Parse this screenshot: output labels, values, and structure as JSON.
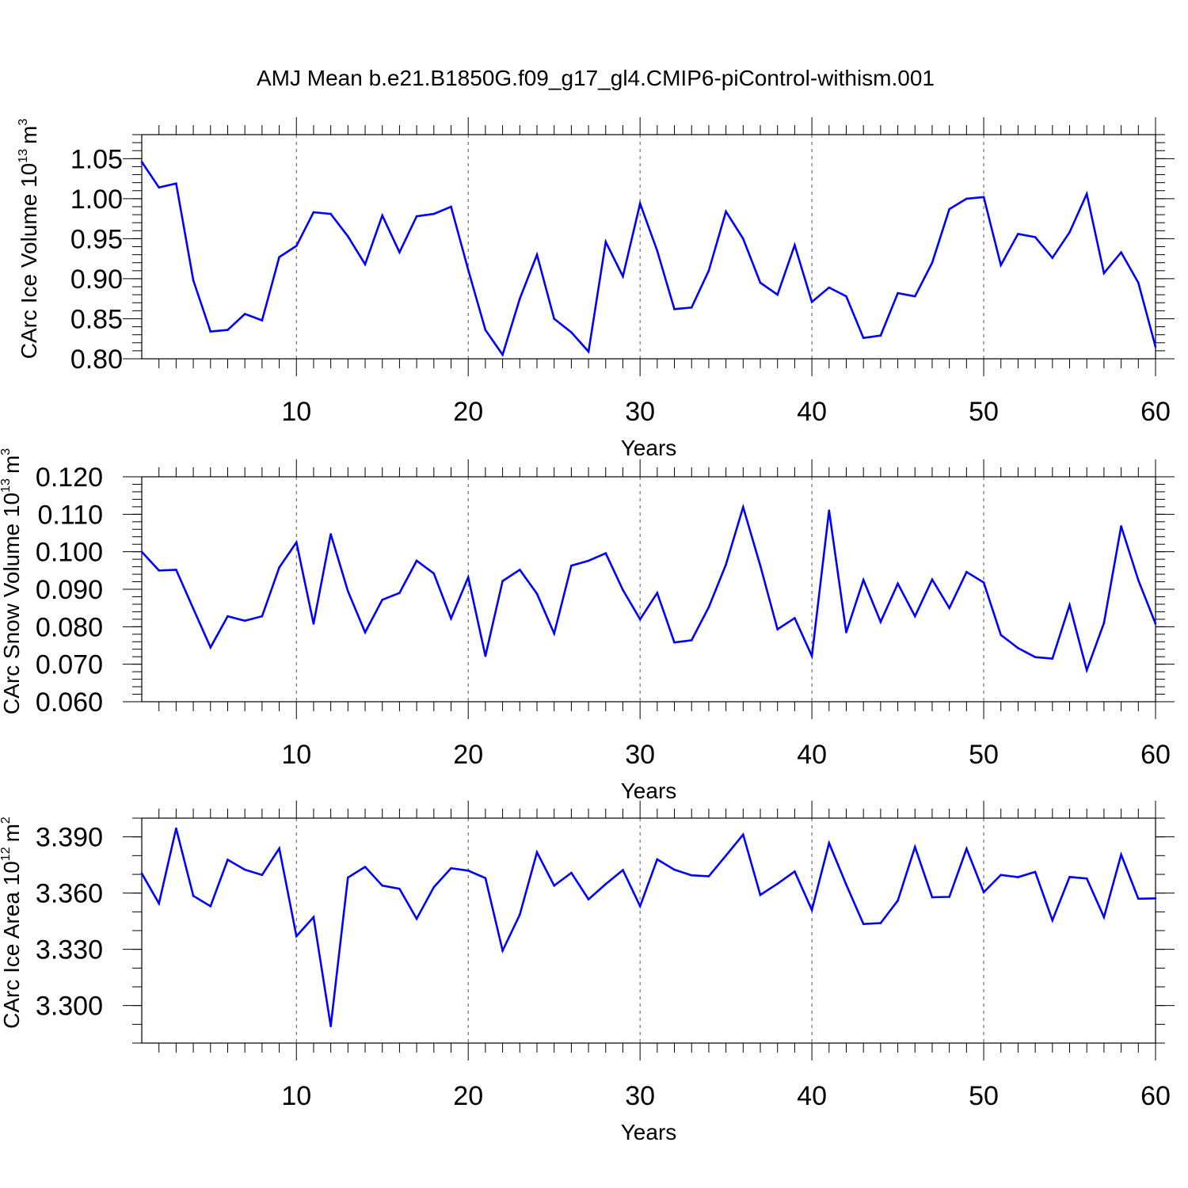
{
  "title": "AMJ Mean b.e21.B1850G.f09_g17_gl4.CMIP6-piControl-withism.001",
  "chart_data": [
    {
      "type": "line",
      "title": "",
      "xlabel": "Years",
      "ylabel": "CArc Ice Volume 10",
      "ylabel_exp": "13",
      "ylabel_unit": "m",
      "ylabel_unit_exp": "3",
      "xlim": [
        1,
        60
      ],
      "ylim": [
        0.8,
        1.08
      ],
      "xticks": [
        10,
        20,
        30,
        40,
        50,
        60
      ],
      "yticks": [
        0.8,
        0.85,
        0.9,
        0.95,
        1.0,
        1.05
      ],
      "ytick_labels": [
        "0.80",
        "0.85",
        "0.90",
        "0.95",
        "1.00",
        "1.05"
      ],
      "grid": "vertical dashed at major x ticks",
      "line_color": "#0000ff",
      "x": [
        1,
        2,
        3,
        4,
        5,
        6,
        7,
        8,
        9,
        10,
        11,
        12,
        13,
        14,
        15,
        16,
        17,
        18,
        19,
        20,
        21,
        22,
        23,
        24,
        25,
        26,
        27,
        28,
        29,
        30,
        31,
        32,
        33,
        34,
        35,
        36,
        37,
        38,
        39,
        40,
        41,
        42,
        43,
        44,
        45,
        46,
        47,
        48,
        49,
        50,
        51,
        52,
        53,
        54,
        55,
        56,
        57,
        58,
        59,
        60
      ],
      "values": [
        1.046,
        1.014,
        1.019,
        0.898,
        0.834,
        0.836,
        0.856,
        0.848,
        0.927,
        0.941,
        0.983,
        0.981,
        0.953,
        0.918,
        0.979,
        0.933,
        0.978,
        0.981,
        0.99,
        0.911,
        0.836,
        0.805,
        0.875,
        0.93,
        0.85,
        0.833,
        0.809,
        0.946,
        0.903,
        0.994,
        0.935,
        0.862,
        0.864,
        0.91,
        0.984,
        0.95,
        0.895,
        0.88,
        0.942,
        0.871,
        0.889,
        0.878,
        0.826,
        0.829,
        0.882,
        0.878,
        0.92,
        0.987,
        1.0,
        1.002,
        0.917,
        0.956,
        0.952,
        0.926,
        0.958,
        1.006,
        0.907,
        0.933,
        0.895,
        0.815
      ]
    },
    {
      "type": "line",
      "title": "",
      "xlabel": "Years",
      "ylabel": "CArc Snow Volume 10",
      "ylabel_exp": "13",
      "ylabel_unit": "m",
      "ylabel_unit_exp": "3",
      "xlim": [
        1,
        60
      ],
      "ylim": [
        0.06,
        0.12
      ],
      "xticks": [
        10,
        20,
        30,
        40,
        50,
        60
      ],
      "yticks": [
        0.06,
        0.07,
        0.08,
        0.09,
        0.1,
        0.11,
        0.12
      ],
      "ytick_labels": [
        "0.060",
        "0.070",
        "0.080",
        "0.090",
        "0.100",
        "0.110",
        "0.120"
      ],
      "grid": "vertical dashed at major x ticks",
      "line_color": "#0000ff",
      "x": [
        1,
        2,
        3,
        4,
        5,
        6,
        7,
        8,
        9,
        10,
        11,
        12,
        13,
        14,
        15,
        16,
        17,
        18,
        19,
        20,
        21,
        22,
        23,
        24,
        25,
        26,
        27,
        28,
        29,
        30,
        31,
        32,
        33,
        34,
        35,
        36,
        37,
        38,
        39,
        40,
        41,
        42,
        43,
        44,
        45,
        46,
        47,
        48,
        49,
        50,
        51,
        52,
        53,
        54,
        55,
        56,
        57,
        58,
        59,
        60
      ],
      "values": [
        0.1,
        0.095,
        0.0952,
        0.0848,
        0.0745,
        0.0828,
        0.0816,
        0.0828,
        0.0958,
        0.1025,
        0.0808,
        0.1047,
        0.0895,
        0.0785,
        0.0872,
        0.089,
        0.0976,
        0.0942,
        0.0822,
        0.0932,
        0.0722,
        0.0922,
        0.0952,
        0.0888,
        0.0782,
        0.0963,
        0.0976,
        0.0996,
        0.0898,
        0.082,
        0.089,
        0.0758,
        0.0764,
        0.0852,
        0.0966,
        0.1119,
        0.0963,
        0.0793,
        0.0823,
        0.0722,
        0.111,
        0.0785,
        0.0925,
        0.0813,
        0.0915,
        0.0828,
        0.0926,
        0.085,
        0.0946,
        0.0918,
        0.0778,
        0.0743,
        0.0719,
        0.0715,
        0.0858,
        0.0684,
        0.081,
        0.1068,
        0.0924,
        0.0808
      ]
    },
    {
      "type": "line",
      "title": "",
      "xlabel": "Years",
      "ylabel": "CArc Ice Area 10",
      "ylabel_exp": "12",
      "ylabel_unit": "m",
      "ylabel_unit_exp": "2",
      "xlim": [
        1,
        60
      ],
      "ylim": [
        3.28,
        3.4
      ],
      "xticks": [
        10,
        20,
        30,
        40,
        50,
        60
      ],
      "yticks": [
        3.3,
        3.33,
        3.36,
        3.39
      ],
      "ytick_labels": [
        "3.300",
        "3.330",
        "3.360",
        "3.390"
      ],
      "grid": "vertical dashed at major x ticks",
      "line_color": "#0000ff",
      "x": [
        1,
        2,
        3,
        4,
        5,
        6,
        7,
        8,
        9,
        10,
        11,
        12,
        13,
        14,
        15,
        16,
        17,
        18,
        19,
        20,
        21,
        22,
        23,
        24,
        25,
        26,
        27,
        28,
        29,
        30,
        31,
        32,
        33,
        34,
        35,
        36,
        37,
        38,
        39,
        40,
        41,
        42,
        43,
        44,
        45,
        46,
        47,
        48,
        49,
        50,
        51,
        52,
        53,
        54,
        55,
        56,
        57,
        58,
        59,
        60
      ],
      "values": [
        3.3705,
        3.3545,
        3.3945,
        3.3585,
        3.353,
        3.3778,
        3.3725,
        3.3697,
        3.3838,
        3.337,
        3.3472,
        3.289,
        3.3683,
        3.374,
        3.364,
        3.3623,
        3.3463,
        3.3632,
        3.3733,
        3.372,
        3.368,
        3.3293,
        3.3485,
        3.3818,
        3.364,
        3.3708,
        3.3567,
        3.3648,
        3.3723,
        3.353,
        3.378,
        3.3725,
        3.3695,
        3.369,
        3.38,
        3.3912,
        3.359,
        3.365,
        3.3715,
        3.351,
        3.3867,
        3.3645,
        3.3435,
        3.344,
        3.356,
        3.3846,
        3.3578,
        3.358,
        3.3837,
        3.3605,
        3.3697,
        3.3685,
        3.3713,
        3.3455,
        3.3686,
        3.3678,
        3.3472,
        3.3805,
        3.357,
        3.3572
      ]
    }
  ]
}
